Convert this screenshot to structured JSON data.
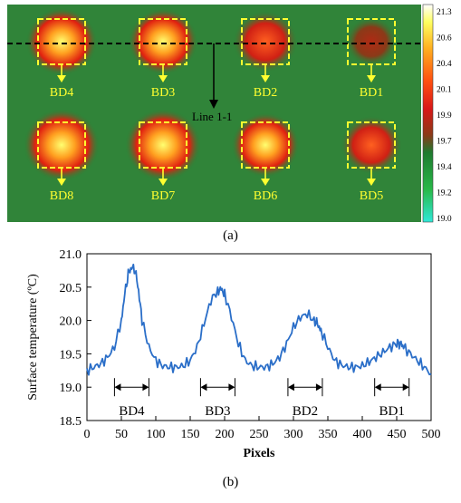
{
  "panel_a": {
    "caption": "(a)",
    "line_label": "Line 1-1",
    "boxes": [
      {
        "label": "BD4",
        "heat": 0.85
      },
      {
        "label": "BD3",
        "heat": 0.8
      },
      {
        "label": "BD2",
        "heat": 0.65
      },
      {
        "label": "BD1",
        "heat": 0.25
      },
      {
        "label": "BD8",
        "heat": 1.0
      },
      {
        "label": "BD7",
        "heat": 1.0
      },
      {
        "label": "BD6",
        "heat": 0.75
      },
      {
        "label": "BD5",
        "heat": 0.55
      }
    ],
    "colorbar": {
      "ticks": [
        "21.3",
        "20.6",
        "20.4",
        "20.1",
        "19.9",
        "19.7",
        "19.4",
        "19.2",
        "19.0"
      ],
      "colors": [
        "#ffffff",
        "#ffff40",
        "#ffa010",
        "#ff4010",
        "#e01818",
        "#a03018",
        "#207a30",
        "#20b040",
        "#20e0d0"
      ]
    }
  },
  "panel_b": {
    "caption": "(b)"
  },
  "chart_data": {
    "type": "line",
    "xlabel": "Pixels",
    "ylabel": "Surface temperature (ºC)",
    "xlim": [
      0,
      500
    ],
    "ylim": [
      18.5,
      21.0
    ],
    "xticks": [
      0,
      50,
      100,
      150,
      200,
      250,
      300,
      350,
      400,
      450,
      500
    ],
    "yticks": [
      18.5,
      19.0,
      19.5,
      20.0,
      20.5,
      21.0
    ],
    "line_color": "#2a6ec8",
    "series": [
      {
        "x": [
          0,
          10,
          20,
          30,
          40,
          50,
          55,
          60,
          65,
          70,
          75,
          80,
          90,
          100,
          110,
          120,
          130,
          140,
          150,
          160,
          170,
          180,
          190,
          195,
          200,
          210,
          220,
          230,
          240,
          250,
          260,
          270,
          280,
          290,
          300,
          310,
          320,
          330,
          335,
          340,
          350,
          360,
          370,
          380,
          390,
          400,
          410,
          420,
          430,
          440,
          450,
          455,
          460,
          470,
          480,
          490,
          500
        ],
        "y": [
          19.25,
          19.3,
          19.35,
          19.45,
          19.6,
          20.0,
          20.4,
          20.7,
          20.8,
          20.75,
          20.45,
          20.0,
          19.6,
          19.4,
          19.32,
          19.3,
          19.3,
          19.32,
          19.4,
          19.6,
          19.95,
          20.3,
          20.45,
          20.47,
          20.4,
          20.05,
          19.65,
          19.4,
          19.32,
          19.3,
          19.3,
          19.35,
          19.45,
          19.65,
          19.9,
          20.05,
          20.1,
          20.0,
          19.95,
          19.85,
          19.6,
          19.4,
          19.33,
          19.3,
          19.3,
          19.32,
          19.38,
          19.45,
          19.52,
          19.6,
          19.65,
          19.66,
          19.6,
          19.5,
          19.4,
          19.3,
          19.2
        ]
      }
    ],
    "ranges": [
      {
        "label": "BD4",
        "x0": 40,
        "x1": 90
      },
      {
        "label": "BD3",
        "x0": 165,
        "x1": 215
      },
      {
        "label": "BD2",
        "x0": 292,
        "x1": 342
      },
      {
        "label": "BD1",
        "x0": 418,
        "x1": 468
      }
    ]
  }
}
